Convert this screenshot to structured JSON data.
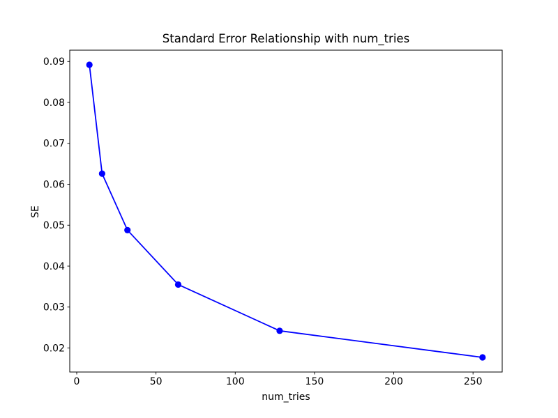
{
  "chart_data": {
    "type": "line",
    "title": "Standard Error Relationship with num_tries",
    "xlabel": "num_tries",
    "ylabel": "SE",
    "x": [
      8,
      16,
      32,
      64,
      128,
      256
    ],
    "y": [
      0.0892,
      0.0626,
      0.0488,
      0.0355,
      0.0242,
      0.0177
    ],
    "series_name": "SE",
    "series_color": "#0000ff",
    "marker": "circle",
    "line_width": 1.8,
    "marker_radius": 4.6,
    "xlim": [
      -4.4,
      268.4
    ],
    "ylim": [
      0.014125,
      0.092775
    ],
    "x_ticks": [
      0,
      50,
      100,
      150,
      200,
      250
    ],
    "x_tick_labels": [
      "0",
      "50",
      "100",
      "150",
      "200",
      "250"
    ],
    "y_ticks": [
      0.02,
      0.03,
      0.04,
      0.05,
      0.06,
      0.07,
      0.08,
      0.09
    ],
    "y_tick_labels": [
      "0.02",
      "0.03",
      "0.04",
      "0.05",
      "0.06",
      "0.07",
      "0.08",
      "0.09"
    ],
    "grid": false,
    "legend": null,
    "axes_color": "#000000",
    "background_color": "#ffffff"
  }
}
